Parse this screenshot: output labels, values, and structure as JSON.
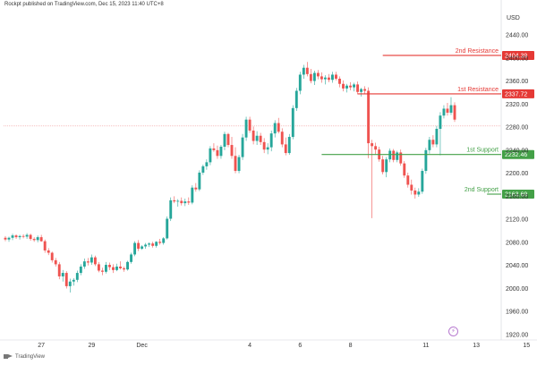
{
  "header": {
    "publisher_line": "Rockpt published on TradingView.com, Dec 15, 2023 11:40 UTC+8"
  },
  "footer": {
    "brand": "TradingView"
  },
  "axis": {
    "currency": "USD"
  },
  "icons": {
    "flash": "lightning-icon",
    "logo": "tradingview-logo-icon"
  },
  "colors": {
    "up": "#26a69a",
    "down": "#ef5350",
    "resistance": "#e53935",
    "support": "#43a047",
    "grid": "#f0f3fa"
  },
  "chart_data": {
    "type": "candlestick",
    "y_axis": {
      "ticks": [
        1920,
        1960,
        2000,
        2040,
        2080,
        2120,
        2160,
        2200,
        2240,
        2280,
        2320,
        2360,
        2400,
        2440
      ],
      "range": [
        1915,
        2470
      ]
    },
    "x_axis": {
      "ticks": [
        {
          "label": "27",
          "index": 10
        },
        {
          "label": "29",
          "index": 24
        },
        {
          "label": "Dec",
          "index": 38
        },
        {
          "label": "4",
          "index": 68
        },
        {
          "label": "6",
          "index": 82
        },
        {
          "label": "8",
          "index": 96
        },
        {
          "label": "11",
          "index": 117
        },
        {
          "label": "13",
          "index": 131
        },
        {
          "label": "15",
          "index": 145
        }
      ]
    },
    "levels": [
      {
        "name": "2nd Resistance",
        "value": 2404.39,
        "kind": "resistance",
        "start_index": 105
      },
      {
        "name": "1st Resistance",
        "value": 2337.72,
        "kind": "resistance",
        "start_index": 98
      },
      {
        "name": "1st Support",
        "value": 2232.46,
        "kind": "support",
        "start_index": 88
      },
      {
        "name": "2nd Support",
        "value": 2163.69,
        "kind": "support",
        "start_index": 134
      }
    ],
    "last_price_line": 2282,
    "candles": [
      [
        2088,
        2091,
        2082,
        2085
      ],
      [
        2085,
        2090,
        2081,
        2088
      ],
      [
        2088,
        2095,
        2084,
        2092
      ],
      [
        2092,
        2094,
        2086,
        2089
      ],
      [
        2089,
        2093,
        2085,
        2091
      ],
      [
        2091,
        2094,
        2087,
        2090
      ],
      [
        2090,
        2096,
        2086,
        2093
      ],
      [
        2093,
        2095,
        2083,
        2086
      ],
      [
        2086,
        2089,
        2081,
        2084
      ],
      [
        2084,
        2092,
        2080,
        2089
      ],
      [
        2089,
        2093,
        2081,
        2082
      ],
      [
        2082,
        2085,
        2062,
        2066
      ],
      [
        2066,
        2070,
        2058,
        2062
      ],
      [
        2062,
        2064,
        2045,
        2049
      ],
      [
        2049,
        2053,
        2038,
        2042
      ],
      [
        2042,
        2046,
        2016,
        2021
      ],
      [
        2021,
        2032,
        2012,
        2027
      ],
      [
        2027,
        2030,
        2000,
        2004
      ],
      [
        2004,
        2017,
        1993,
        2012
      ],
      [
        2012,
        2018,
        2005,
        2015
      ],
      [
        2015,
        2031,
        2011,
        2027
      ],
      [
        2027,
        2042,
        2023,
        2038
      ],
      [
        2038,
        2052,
        2034,
        2047
      ],
      [
        2047,
        2053,
        2040,
        2045
      ],
      [
        2045,
        2059,
        2041,
        2054
      ],
      [
        2054,
        2057,
        2039,
        2042
      ],
      [
        2042,
        2046,
        2028,
        2031
      ],
      [
        2031,
        2036,
        2023,
        2029
      ],
      [
        2029,
        2046,
        2026,
        2041
      ],
      [
        2041,
        2045,
        2032,
        2037
      ],
      [
        2037,
        2042,
        2027,
        2032
      ],
      [
        2032,
        2043,
        2030,
        2038
      ],
      [
        2038,
        2047,
        2033,
        2035
      ],
      [
        2035,
        2038,
        2029,
        2033
      ],
      [
        2033,
        2048,
        2031,
        2046
      ],
      [
        2046,
        2062,
        2043,
        2059
      ],
      [
        2059,
        2082,
        2056,
        2079
      ],
      [
        2079,
        2084,
        2065,
        2069
      ],
      [
        2069,
        2075,
        2067,
        2073
      ],
      [
        2073,
        2079,
        2069,
        2076
      ],
      [
        2076,
        2080,
        2072,
        2078
      ],
      [
        2078,
        2081,
        2071,
        2074
      ],
      [
        2074,
        2082,
        2071,
        2081
      ],
      [
        2081,
        2086,
        2076,
        2079
      ],
      [
        2079,
        2089,
        2076,
        2087
      ],
      [
        2087,
        2125,
        2085,
        2121
      ],
      [
        2121,
        2158,
        2117,
        2153
      ],
      [
        2153,
        2160,
        2148,
        2151
      ],
      [
        2151,
        2155,
        2142,
        2152
      ],
      [
        2152,
        2158,
        2144,
        2148
      ],
      [
        2148,
        2156,
        2143,
        2151
      ],
      [
        2151,
        2158,
        2145,
        2149
      ],
      [
        2149,
        2179,
        2146,
        2175
      ],
      [
        2175,
        2183,
        2168,
        2172
      ],
      [
        2172,
        2205,
        2169,
        2201
      ],
      [
        2201,
        2215,
        2197,
        2212
      ],
      [
        2212,
        2224,
        2206,
        2219
      ],
      [
        2219,
        2247,
        2214,
        2243
      ],
      [
        2243,
        2252,
        2237,
        2240
      ],
      [
        2240,
        2248,
        2225,
        2230
      ],
      [
        2230,
        2249,
        2225,
        2246
      ],
      [
        2246,
        2272,
        2240,
        2268
      ],
      [
        2268,
        2270,
        2245,
        2249
      ],
      [
        2249,
        2263,
        2225,
        2230
      ],
      [
        2230,
        2245,
        2200,
        2204
      ],
      [
        2204,
        2232,
        2200,
        2228
      ],
      [
        2228,
        2268,
        2223,
        2262
      ],
      [
        2262,
        2298,
        2256,
        2293
      ],
      [
        2293,
        2298,
        2270,
        2274
      ],
      [
        2274,
        2281,
        2250,
        2256
      ],
      [
        2256,
        2273,
        2249,
        2265
      ],
      [
        2265,
        2270,
        2249,
        2254
      ],
      [
        2254,
        2261,
        2235,
        2241
      ],
      [
        2241,
        2252,
        2233,
        2245
      ],
      [
        2245,
        2274,
        2238,
        2269
      ],
      [
        2269,
        2292,
        2262,
        2287
      ],
      [
        2287,
        2296,
        2269,
        2272
      ],
      [
        2272,
        2278,
        2245,
        2250
      ],
      [
        2250,
        2262,
        2231,
        2235
      ],
      [
        2235,
        2268,
        2232,
        2263
      ],
      [
        2263,
        2318,
        2259,
        2313
      ],
      [
        2313,
        2348,
        2308,
        2343
      ],
      [
        2343,
        2376,
        2337,
        2371
      ],
      [
        2371,
        2388,
        2364,
        2383
      ],
      [
        2383,
        2393,
        2368,
        2372
      ],
      [
        2372,
        2381,
        2356,
        2360
      ],
      [
        2360,
        2378,
        2353,
        2374
      ],
      [
        2374,
        2379,
        2363,
        2368
      ],
      [
        2368,
        2375,
        2357,
        2363
      ],
      [
        2363,
        2370,
        2354,
        2366
      ],
      [
        2366,
        2372,
        2358,
        2362
      ],
      [
        2362,
        2376,
        2357,
        2371
      ],
      [
        2371,
        2376,
        2361,
        2364
      ],
      [
        2364,
        2368,
        2349,
        2355
      ],
      [
        2355,
        2361,
        2342,
        2347
      ],
      [
        2347,
        2355,
        2340,
        2352
      ],
      [
        2352,
        2358,
        2344,
        2349
      ],
      [
        2349,
        2357,
        2342,
        2354
      ],
      [
        2354,
        2359,
        2337,
        2341
      ],
      [
        2341,
        2348,
        2333,
        2346
      ],
      [
        2346,
        2351,
        2338,
        2343
      ],
      [
        2343,
        2349,
        2226,
        2252
      ],
      [
        2252,
        2258,
        2122,
        2247
      ],
      [
        2247,
        2253,
        2232,
        2241
      ],
      [
        2241,
        2246,
        2220,
        2224
      ],
      [
        2224,
        2230,
        2198,
        2202
      ],
      [
        2202,
        2228,
        2193,
        2224
      ],
      [
        2224,
        2243,
        2219,
        2239
      ],
      [
        2239,
        2242,
        2219,
        2223
      ],
      [
        2223,
        2239,
        2219,
        2236
      ],
      [
        2236,
        2241,
        2213,
        2217
      ],
      [
        2217,
        2221,
        2192,
        2196
      ],
      [
        2196,
        2201,
        2175,
        2180
      ],
      [
        2180,
        2189,
        2163,
        2170
      ],
      [
        2170,
        2175,
        2156,
        2163
      ],
      [
        2163,
        2174,
        2159,
        2168
      ],
      [
        2168,
        2208,
        2164,
        2204
      ],
      [
        2204,
        2244,
        2199,
        2240
      ],
      [
        2240,
        2263,
        2234,
        2258
      ],
      [
        2258,
        2266,
        2245,
        2250
      ],
      [
        2250,
        2282,
        2245,
        2277
      ],
      [
        2277,
        2306,
        2231,
        2300
      ],
      [
        2300,
        2318,
        2295,
        2312
      ],
      [
        2312,
        2322,
        2300,
        2305
      ],
      [
        2305,
        2332,
        2301,
        2318
      ],
      [
        2318,
        2323,
        2289,
        2293
      ]
    ]
  }
}
